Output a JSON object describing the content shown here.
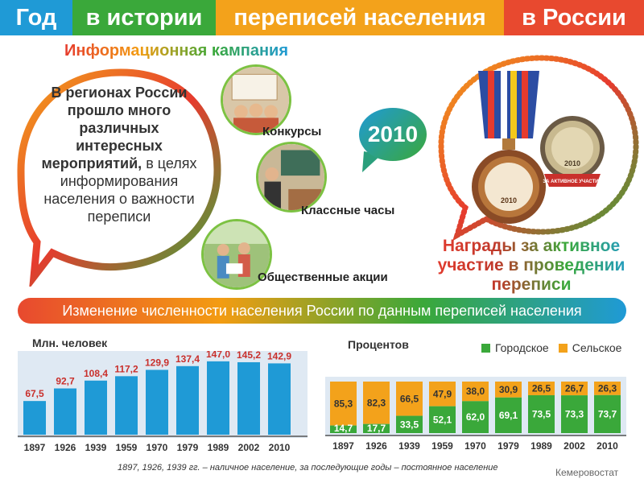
{
  "header": {
    "part1": "Год",
    "part2": "в истории",
    "part3": "переписей населения",
    "part4": "в России",
    "colors": [
      "#1f9ad6",
      "#3aa83a",
      "#f3a21b",
      "#e8492f"
    ]
  },
  "campaign": {
    "title": "Информационная кампания",
    "bubble_bold": "В регионах России прошло много различных интересных мероприятий,",
    "bubble_normal": "в целях информирования населения о важности переписи",
    "items": [
      "Конкурсы",
      "Классные часы",
      "Общественные акции"
    ]
  },
  "year_badge": "2010",
  "awards": {
    "text": "Награды за активное участие в проведении переписи",
    "medal_year": "2010",
    "badge_year": "2010",
    "badge_caption": "ЗА АКТИВНОЕ УЧАСТИЕ"
  },
  "section_title": "Изменение численности населения России по данным переписей населения",
  "chart_data": [
    {
      "type": "bar",
      "ylabel": "Млн. человек",
      "categories": [
        "1897",
        "1926",
        "1939",
        "1959",
        "1970",
        "1979",
        "1989",
        "2002",
        "2010"
      ],
      "values": [
        67.5,
        92.7,
        108.4,
        117.2,
        129.9,
        137.4,
        147.0,
        145.2,
        142.9
      ],
      "value_labels": [
        "67,5",
        "92,7",
        "108,4",
        "117,2",
        "129,9",
        "137,4",
        "147,0",
        "145,2",
        "142,9"
      ],
      "bar_color": "#1f9ad6",
      "label_color": "#c9302c"
    },
    {
      "type": "bar",
      "stacked": true,
      "ylabel": "Процентов",
      "categories": [
        "1897",
        "1926",
        "1939",
        "1959",
        "1970",
        "1979",
        "1989",
        "2002",
        "2010"
      ],
      "series": [
        {
          "name": "Городское",
          "color": "#3aa83a",
          "values": [
            14.7,
            17.7,
            33.5,
            52.1,
            62.0,
            69.1,
            73.5,
            73.3,
            73.7
          ],
          "labels": [
            "14,7",
            "17,7",
            "33,5",
            "52,1",
            "62,0",
            "69,1",
            "73,5",
            "73,3",
            "73,7"
          ]
        },
        {
          "name": "Сельское",
          "color": "#f3a21b",
          "values": [
            85.3,
            82.3,
            66.5,
            47.9,
            38.0,
            30.9,
            26.5,
            26.7,
            26.3
          ],
          "labels": [
            "85,3",
            "82,3",
            "66,5",
            "47,9",
            "38,0",
            "30,9",
            "26,5",
            "26,7",
            "26,3"
          ]
        }
      ],
      "ylim": [
        0,
        100
      ]
    }
  ],
  "footnote": "1897, 1926, 1939 гг. – наличное население, за последующие годы – постоянное население",
  "source": "Кемеровостат"
}
